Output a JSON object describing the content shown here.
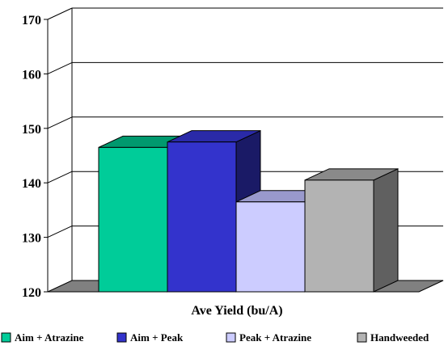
{
  "chart_data": {
    "type": "bar",
    "categories": [
      "Aim + Atrazine",
      "Aim + Peak",
      "Peak + Atrazine",
      "Handweeded"
    ],
    "values": [
      146.5,
      147.5,
      136.5,
      140.5
    ],
    "xlabel": "Ave Yield (bu/A)",
    "ylim": [
      120,
      170
    ],
    "yticks": [
      120,
      130,
      140,
      150,
      160,
      170
    ],
    "grid": true,
    "legend_position": "bottom",
    "colors": {
      "front": [
        "#00cc99",
        "#3333cc",
        "#ccccff",
        "#b3b3b3"
      ],
      "top": [
        "#00996e",
        "#2a2aa8",
        "#9999cc",
        "#8a8a8a"
      ],
      "side": [
        "#007a58",
        "#1a1a66",
        "#8080b0",
        "#606060"
      ]
    }
  }
}
